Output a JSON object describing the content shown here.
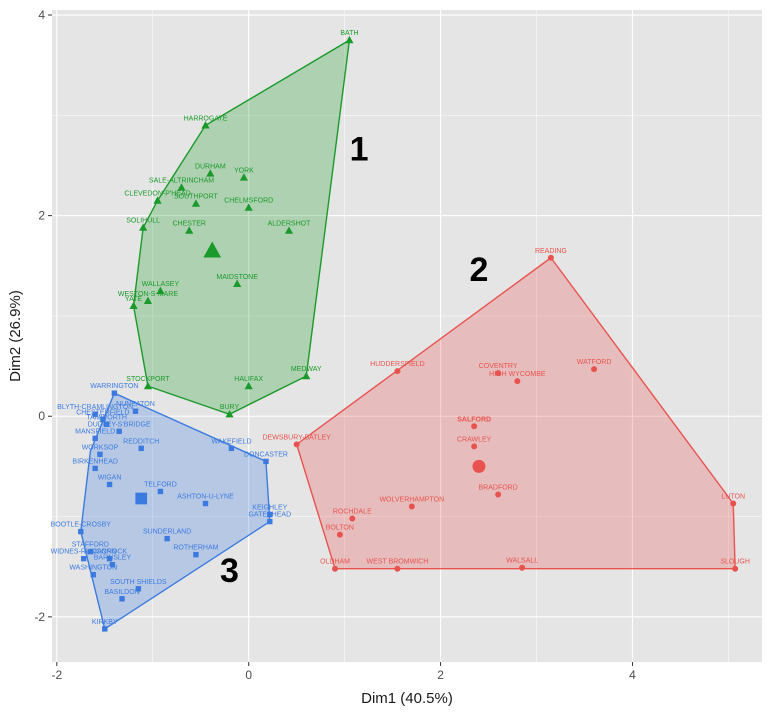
{
  "chart_data": {
    "type": "scatter",
    "xlabel": "Dim1 (40.5%)",
    "ylabel": "Dim2 (26.9%)",
    "xlim": [
      -2.05,
      5.35
    ],
    "ylim": [
      -2.45,
      4.05
    ],
    "xticks": [
      -2,
      0,
      2,
      4
    ],
    "yticks": [
      -2,
      0,
      2,
      4
    ],
    "grid": true,
    "colors": {
      "1": "#1a9a2a",
      "2": "#e8534f",
      "3": "#3b7be0"
    },
    "cluster_labels": [
      {
        "id": "1",
        "text": "1",
        "x": 1.15,
        "y": 2.55
      },
      {
        "id": "2",
        "text": "2",
        "x": 2.4,
        "y": 1.35
      },
      {
        "id": "3",
        "text": "3",
        "x": -0.2,
        "y": -1.65
      }
    ],
    "series": [
      {
        "name": "1",
        "marker": "triangle",
        "hull": [
          [
            1.05,
            3.75
          ],
          [
            0.6,
            0.4
          ],
          [
            -0.2,
            0.02
          ],
          [
            -1.05,
            0.3
          ],
          [
            -1.2,
            1.1
          ],
          [
            -1.1,
            1.88
          ],
          [
            -0.95,
            2.15
          ],
          [
            -0.45,
            2.9
          ]
        ],
        "centroid": [
          -0.38,
          1.65
        ],
        "points": [
          {
            "name": "BATH",
            "x": 1.05,
            "y": 3.75
          },
          {
            "name": "HARROGATE",
            "x": -0.45,
            "y": 2.9
          },
          {
            "name": "DURHAM",
            "x": -0.4,
            "y": 2.42
          },
          {
            "name": "YORK",
            "x": -0.05,
            "y": 2.38
          },
          {
            "name": "SALE-ALTRINCHAM",
            "x": -0.7,
            "y": 2.28
          },
          {
            "name": "CLEVEDON-P'HEAD",
            "x": -0.95,
            "y": 2.15
          },
          {
            "name": "SOUTHPORT",
            "x": -0.55,
            "y": 2.12
          },
          {
            "name": "CHELMSFORD",
            "x": 0.0,
            "y": 2.08
          },
          {
            "name": "SOLIHULL",
            "x": -1.1,
            "y": 1.88
          },
          {
            "name": "CHESTER",
            "x": -0.62,
            "y": 1.85
          },
          {
            "name": "ALDERSHOT",
            "x": 0.42,
            "y": 1.85
          },
          {
            "name": "MAIDSTONE",
            "x": -0.12,
            "y": 1.32
          },
          {
            "name": "WALLASEY",
            "x": -0.92,
            "y": 1.25
          },
          {
            "name": "WESTON-S-MARE",
            "x": -1.05,
            "y": 1.15
          },
          {
            "name": "YATE",
            "x": -1.2,
            "y": 1.1
          },
          {
            "name": "MEDWAY",
            "x": 0.6,
            "y": 0.4
          },
          {
            "name": "STOCKPORT",
            "x": -1.05,
            "y": 0.3
          },
          {
            "name": "HALIFAX",
            "x": 0.0,
            "y": 0.3
          },
          {
            "name": "BURY",
            "x": -0.2,
            "y": 0.02
          }
        ]
      },
      {
        "name": "2",
        "marker": "circle",
        "hull": [
          [
            3.15,
            1.58
          ],
          [
            5.05,
            -0.87
          ],
          [
            5.07,
            -1.52
          ],
          [
            0.9,
            -1.52
          ],
          [
            0.5,
            -0.28
          ]
        ],
        "centroid": [
          2.4,
          -0.5
        ],
        "points": [
          {
            "name": "READING",
            "x": 3.15,
            "y": 1.58
          },
          {
            "name": "HUDDERSFIELD",
            "x": 1.55,
            "y": 0.45
          },
          {
            "name": "COVENTRY",
            "x": 2.6,
            "y": 0.43
          },
          {
            "name": "WATFORD",
            "x": 3.6,
            "y": 0.47
          },
          {
            "name": "HIGH WYCOMBE",
            "x": 2.8,
            "y": 0.35
          },
          {
            "name": "SALFORD",
            "x": 2.35,
            "y": -0.1
          },
          {
            "name": "CRAWLEY",
            "x": 2.35,
            "y": -0.3
          },
          {
            "name": "DEWSBURY-BATLEY",
            "x": 0.5,
            "y": -0.28
          },
          {
            "name": "BRADFORD",
            "x": 2.6,
            "y": -0.78
          },
          {
            "name": "LUTON",
            "x": 5.05,
            "y": -0.87
          },
          {
            "name": "WOLVERHAMPTON",
            "x": 1.7,
            "y": -0.9
          },
          {
            "name": "ROCHDALE",
            "x": 1.08,
            "y": -1.02
          },
          {
            "name": "BOLTON",
            "x": 0.95,
            "y": -1.18
          },
          {
            "name": "OLDHAM",
            "x": 0.9,
            "y": -1.52
          },
          {
            "name": "WEST BROMWICH",
            "x": 1.55,
            "y": -1.52
          },
          {
            "name": "WALSALL",
            "x": 2.85,
            "y": -1.51
          },
          {
            "name": "SLOUGH",
            "x": 5.07,
            "y": -1.52
          }
        ]
      },
      {
        "name": "3",
        "marker": "square",
        "hull": [
          [
            -1.4,
            0.23
          ],
          [
            0.18,
            -0.45
          ],
          [
            0.22,
            -1.05
          ],
          [
            -1.5,
            -2.12
          ],
          [
            -1.75,
            -1.15
          ],
          [
            -1.65,
            -0.35
          ]
        ],
        "centroid": [
          -1.12,
          -0.82
        ],
        "points": [
          {
            "name": "WARRINGTON",
            "x": -1.4,
            "y": 0.23
          },
          {
            "name": "BLYTH-CRAMLINGTON",
            "x": -1.6,
            "y": 0.02
          },
          {
            "name": "NUNEATON",
            "x": -1.18,
            "y": 0.05
          },
          {
            "name": "CHESTERFIELD",
            "x": -1.52,
            "y": -0.03
          },
          {
            "name": "TAMWORTH",
            "x": -1.48,
            "y": -0.08
          },
          {
            "name": "DUDLEY-S'BRIDGE",
            "x": -1.35,
            "y": -0.15
          },
          {
            "name": "MANSFIELD",
            "x": -1.6,
            "y": -0.22
          },
          {
            "name": "REDDITCH",
            "x": -1.12,
            "y": -0.32
          },
          {
            "name": "WAKEFIELD",
            "x": -0.18,
            "y": -0.32
          },
          {
            "name": "DONCASTER",
            "x": 0.18,
            "y": -0.45
          },
          {
            "name": "WORKSOP",
            "x": -1.55,
            "y": -0.38
          },
          {
            "name": "BIRKENHEAD",
            "x": -1.6,
            "y": -0.52
          },
          {
            "name": "WIGAN",
            "x": -1.45,
            "y": -0.68
          },
          {
            "name": "TELFORD",
            "x": -0.92,
            "y": -0.75
          },
          {
            "name": "ASHTON-U-LYNE",
            "x": -0.45,
            "y": -0.87
          },
          {
            "name": "KEIGHLEY",
            "x": 0.22,
            "y": -0.98
          },
          {
            "name": "GATESHEAD",
            "x": 0.22,
            "y": -1.05
          },
          {
            "name": "BOOTLE-CROSBY",
            "x": -1.75,
            "y": -1.15
          },
          {
            "name": "SUNDERLAND",
            "x": -0.85,
            "y": -1.22
          },
          {
            "name": "STAFFORD",
            "x": -1.65,
            "y": -1.35
          },
          {
            "name": "WIDNES-RUNCORN",
            "x": -1.72,
            "y": -1.42
          },
          {
            "name": "CANNOCK",
            "x": -1.45,
            "y": -1.42
          },
          {
            "name": "BARNSLEY",
            "x": -1.42,
            "y": -1.48
          },
          {
            "name": "ROTHERHAM",
            "x": -0.55,
            "y": -1.38
          },
          {
            "name": "WASHINGTON",
            "x": -1.62,
            "y": -1.58
          },
          {
            "name": "SOUTH SHIELDS",
            "x": -1.15,
            "y": -1.72
          },
          {
            "name": "BASILDON",
            "x": -1.32,
            "y": -1.82
          },
          {
            "name": "KIRKBY",
            "x": -1.5,
            "y": -2.12
          }
        ]
      }
    ]
  }
}
